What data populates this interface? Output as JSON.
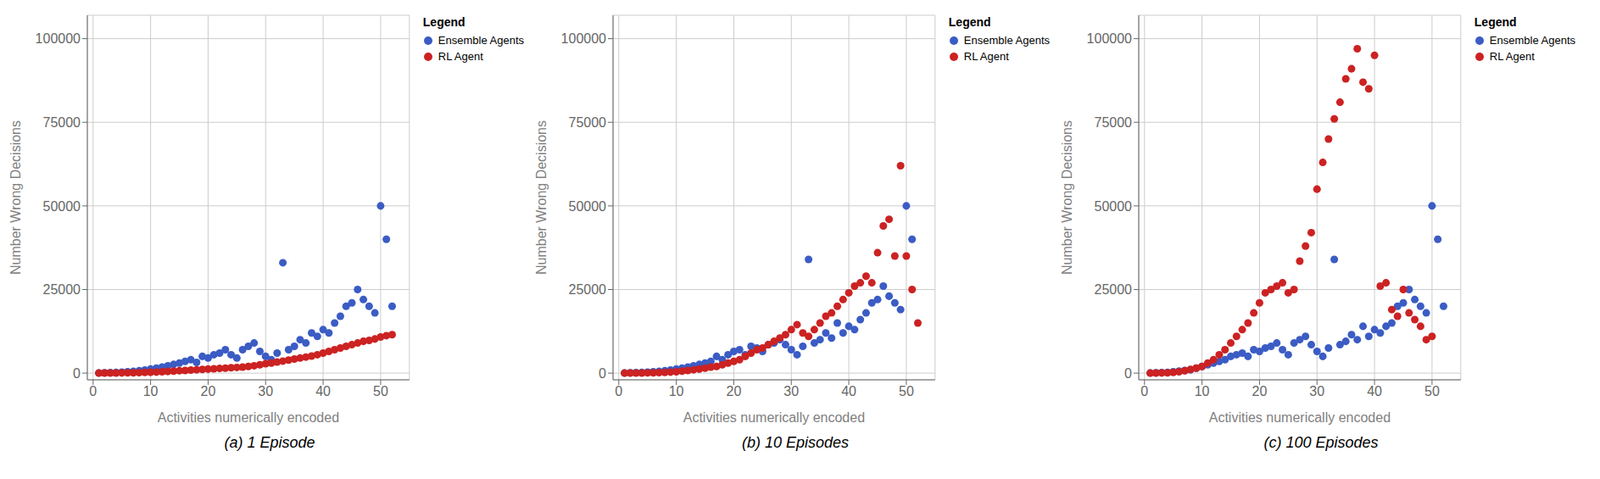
{
  "chart_data": [
    {
      "type": "scatter",
      "title": "(a) 1 Episode",
      "x_label": "Activities numerically encoded",
      "y_label": "Number Wrong Decisions",
      "xlim": [
        -1,
        55
      ],
      "ylim": [
        -2000,
        107000
      ],
      "xticks": [
        0,
        10,
        20,
        30,
        40,
        50
      ],
      "yticks": [
        0,
        25000,
        50000,
        75000,
        100000
      ],
      "grid": true,
      "legend": "right",
      "legend_title": "Legend",
      "series": [
        {
          "name": "Ensemble Agents",
          "color": "#3B5CC4",
          "x": [
            1,
            2,
            3,
            4,
            5,
            6,
            7,
            8,
            9,
            10,
            11,
            12,
            13,
            14,
            15,
            16,
            17,
            18,
            19,
            20,
            21,
            22,
            23,
            24,
            25,
            26,
            27,
            28,
            29,
            30,
            31,
            32,
            33,
            34,
            35,
            36,
            37,
            38,
            39,
            40,
            41,
            42,
            43,
            44,
            45,
            46,
            47,
            48,
            49,
            50,
            51,
            52
          ],
          "values": [
            50,
            100,
            150,
            200,
            300,
            400,
            500,
            700,
            900,
            1200,
            1500,
            1800,
            2200,
            2600,
            3000,
            3500,
            4000,
            3200,
            5000,
            4500,
            5500,
            6000,
            7000,
            5500,
            4500,
            7000,
            8000,
            9000,
            6500,
            5000,
            4000,
            6000,
            33000,
            7000,
            8000,
            10000,
            9000,
            12000,
            11000,
            13000,
            12000,
            15000,
            17000,
            20000,
            21000,
            25000,
            22000,
            20000,
            18000,
            50000,
            40000,
            20000
          ]
        },
        {
          "name": "RL Agent",
          "color": "#CC2222",
          "x": [
            1,
            2,
            3,
            4,
            5,
            6,
            7,
            8,
            9,
            10,
            11,
            12,
            13,
            14,
            15,
            16,
            17,
            18,
            19,
            20,
            21,
            22,
            23,
            24,
            25,
            26,
            27,
            28,
            29,
            30,
            31,
            32,
            33,
            34,
            35,
            36,
            37,
            38,
            39,
            40,
            41,
            42,
            43,
            44,
            45,
            46,
            47,
            48,
            49,
            50,
            51,
            52
          ],
          "values": [
            10,
            20,
            30,
            40,
            60,
            80,
            100,
            150,
            200,
            250,
            300,
            400,
            500,
            600,
            700,
            800,
            900,
            1000,
            1100,
            1200,
            1300,
            1400,
            1500,
            1600,
            1700,
            1800,
            2000,
            2200,
            2500,
            2800,
            3000,
            3300,
            3600,
            3900,
            4200,
            4500,
            4800,
            5100,
            5500,
            6000,
            6500,
            7000,
            7500,
            8000,
            8500,
            9000,
            9500,
            9800,
            10200,
            10800,
            11200,
            11500
          ]
        }
      ]
    },
    {
      "type": "scatter",
      "title": "(b) 10 Episodes",
      "x_label": "Activities numerically encoded",
      "y_label": "Number Wrong Decisions",
      "xlim": [
        -1,
        55
      ],
      "ylim": [
        -2000,
        107000
      ],
      "xticks": [
        0,
        10,
        20,
        30,
        40,
        50
      ],
      "yticks": [
        0,
        25000,
        50000,
        75000,
        100000
      ],
      "grid": true,
      "legend": "right",
      "legend_title": "Legend",
      "series": [
        {
          "name": "Ensemble Agents",
          "color": "#3B5CC4",
          "x": [
            1,
            2,
            3,
            4,
            5,
            6,
            7,
            8,
            9,
            10,
            11,
            12,
            13,
            14,
            15,
            16,
            17,
            18,
            19,
            20,
            21,
            22,
            23,
            24,
            25,
            26,
            27,
            28,
            29,
            30,
            31,
            32,
            33,
            34,
            35,
            36,
            37,
            38,
            39,
            40,
            41,
            42,
            43,
            44,
            45,
            46,
            47,
            48,
            49,
            50,
            51
          ],
          "values": [
            50,
            100,
            150,
            200,
            300,
            400,
            500,
            700,
            900,
            1200,
            1500,
            1800,
            2200,
            2600,
            3000,
            3500,
            5000,
            4000,
            5500,
            6500,
            7000,
            5500,
            8000,
            7500,
            6500,
            8500,
            9000,
            10000,
            8500,
            7000,
            5500,
            8000,
            34000,
            9000,
            10000,
            12000,
            10500,
            15000,
            12000,
            14000,
            13000,
            16000,
            18000,
            21000,
            22000,
            26000,
            23000,
            21000,
            19000,
            50000,
            40000
          ]
        },
        {
          "name": "RL Agent",
          "color": "#CC2222",
          "x": [
            1,
            2,
            3,
            4,
            5,
            6,
            7,
            8,
            9,
            10,
            11,
            12,
            13,
            14,
            15,
            16,
            17,
            18,
            19,
            20,
            21,
            22,
            23,
            24,
            25,
            26,
            27,
            28,
            29,
            30,
            31,
            32,
            33,
            34,
            35,
            36,
            37,
            38,
            39,
            40,
            41,
            42,
            43,
            44,
            45,
            46,
            47,
            48,
            49,
            50,
            51,
            52
          ],
          "values": [
            10,
            20,
            30,
            40,
            70,
            100,
            150,
            200,
            300,
            400,
            600,
            800,
            1000,
            1200,
            1500,
            1800,
            2000,
            2500,
            3000,
            3500,
            4000,
            5000,
            6000,
            7000,
            7500,
            8500,
            9500,
            10500,
            11500,
            13000,
            14500,
            12000,
            11000,
            13000,
            15000,
            17000,
            18000,
            20000,
            22000,
            24000,
            26000,
            27000,
            29000,
            27000,
            36000,
            44000,
            46000,
            35000,
            62000,
            35000,
            25000,
            15000
          ]
        }
      ]
    },
    {
      "type": "scatter",
      "title": "(c) 100 Episodes",
      "x_label": "Activities numerically encoded",
      "y_label": "Number Wrong Decisions",
      "xlim": [
        -1,
        55
      ],
      "ylim": [
        -2000,
        107000
      ],
      "xticks": [
        0,
        10,
        20,
        30,
        40,
        50
      ],
      "yticks": [
        0,
        25000,
        50000,
        75000,
        100000
      ],
      "grid": true,
      "legend": "right",
      "legend_title": "Legend",
      "series": [
        {
          "name": "Ensemble Agents",
          "color": "#3B5CC4",
          "x": [
            1,
            2,
            3,
            4,
            5,
            6,
            7,
            8,
            9,
            10,
            11,
            12,
            13,
            14,
            15,
            16,
            17,
            18,
            19,
            20,
            21,
            22,
            23,
            24,
            25,
            26,
            27,
            28,
            29,
            30,
            31,
            32,
            33,
            34,
            35,
            36,
            37,
            38,
            39,
            40,
            41,
            42,
            43,
            44,
            45,
            46,
            47,
            48,
            49,
            50,
            51,
            52
          ],
          "values": [
            50,
            100,
            150,
            200,
            400,
            600,
            800,
            1000,
            1500,
            2000,
            2500,
            3000,
            3500,
            4000,
            5000,
            5500,
            6000,
            5000,
            7000,
            6500,
            7500,
            8000,
            9000,
            7000,
            5500,
            9000,
            10000,
            11000,
            8500,
            6500,
            5000,
            7500,
            34000,
            8500,
            9500,
            11500,
            10000,
            14000,
            11000,
            13000,
            12000,
            14000,
            15000,
            20000,
            21000,
            25000,
            22000,
            20000,
            18000,
            50000,
            40000,
            20000
          ]
        },
        {
          "name": "RL Agent",
          "color": "#CC2222",
          "x": [
            1,
            2,
            3,
            4,
            5,
            6,
            7,
            8,
            9,
            10,
            11,
            12,
            13,
            14,
            15,
            16,
            17,
            18,
            19,
            20,
            21,
            22,
            23,
            24,
            25,
            26,
            27,
            28,
            29,
            30,
            31,
            32,
            33,
            34,
            35,
            36,
            37,
            38,
            39,
            40,
            41,
            42,
            43,
            44,
            45,
            46,
            47,
            48,
            49,
            50
          ],
          "values": [
            10,
            30,
            60,
            100,
            200,
            400,
            700,
            1100,
            1500,
            2000,
            3000,
            4000,
            5500,
            7000,
            9000,
            11000,
            13000,
            15000,
            18000,
            21000,
            24000,
            25000,
            26000,
            27000,
            24000,
            25000,
            33500,
            38000,
            42000,
            55000,
            63000,
            70000,
            76000,
            81000,
            88000,
            91000,
            97000,
            87000,
            85000,
            95000,
            26000,
            27000,
            19000,
            17000,
            25000,
            18000,
            16000,
            14000,
            10000,
            11000
          ]
        }
      ]
    }
  ]
}
